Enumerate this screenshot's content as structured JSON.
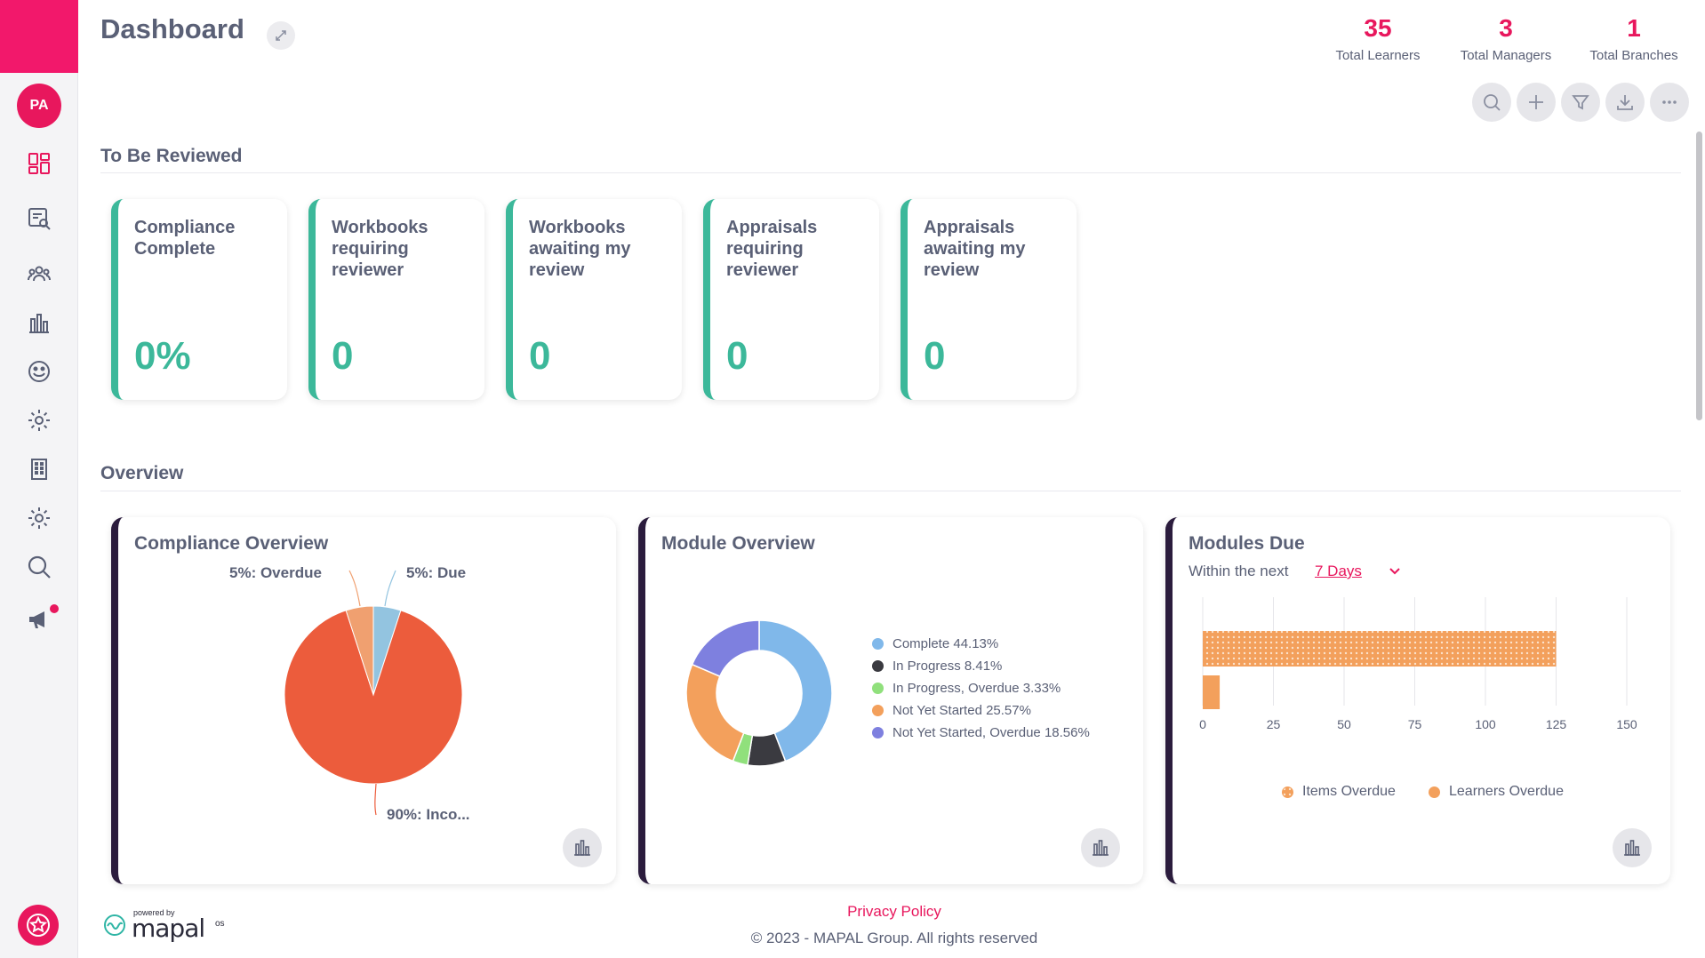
{
  "header": {
    "title": "Dashboard",
    "stats": [
      {
        "value": "35",
        "label": "Total Learners"
      },
      {
        "value": "3",
        "label": "Total Managers"
      },
      {
        "value": "1",
        "label": "Total Branches"
      }
    ]
  },
  "sidebar": {
    "avatar_initials": "PA",
    "items": [
      "dashboard-icon",
      "report-search-icon",
      "people-icon",
      "bar-chart-icon",
      "smiley-icon",
      "gear-icon",
      "building-icon",
      "settings-icon",
      "search-icon",
      "megaphone-icon"
    ]
  },
  "toolbar": [
    "search-icon",
    "plus-icon",
    "filter-icon",
    "download-icon",
    "more-icon"
  ],
  "to_be_reviewed": {
    "title": "To Be Reviewed",
    "cards": [
      {
        "label": "Compliance Complete",
        "value": "0%"
      },
      {
        "label": "Workbooks requiring reviewer",
        "value": "0"
      },
      {
        "label": "Workbooks awaiting my review",
        "value": "0"
      },
      {
        "label": "Appraisals requiring reviewer",
        "value": "0"
      },
      {
        "label": "Appraisals awaiting my review",
        "value": "0"
      }
    ]
  },
  "overview": {
    "title": "Overview",
    "compliance": {
      "title": "Compliance Overview",
      "labels": {
        "overdue": "5%: Overdue",
        "due": "5%: Due",
        "incomplete": "90%: Inco..."
      }
    },
    "module": {
      "title": "Module Overview",
      "legend": [
        "Complete 44.13%",
        "In Progress 8.41%",
        "In Progress, Overdue 3.33%",
        "Not Yet Started 25.57%",
        "Not Yet Started, Overdue 18.56%"
      ]
    },
    "modules_due": {
      "title": "Modules Due",
      "within_label": "Within the next",
      "period": "7 Days",
      "x_ticks": [
        "0",
        "25",
        "50",
        "75",
        "100",
        "125",
        "150"
      ],
      "legend": [
        "Items Overdue",
        "Learners Overdue"
      ]
    }
  },
  "chart_data": [
    {
      "type": "pie",
      "title": "Compliance Overview",
      "categories": [
        "Overdue",
        "Due",
        "Incomplete"
      ],
      "values": [
        5,
        5,
        90
      ],
      "colors": [
        "#f0a070",
        "#93c4e0",
        "#ec5c3c"
      ]
    },
    {
      "type": "pie",
      "title": "Module Overview",
      "categories": [
        "Complete",
        "In Progress",
        "In Progress, Overdue",
        "Not Yet Started",
        "Not Yet Started, Overdue"
      ],
      "values": [
        44.13,
        8.41,
        3.33,
        25.57,
        18.56
      ],
      "colors": [
        "#80b8ea",
        "#3a3a40",
        "#90e07c",
        "#f3a05c",
        "#7e80df"
      ]
    },
    {
      "type": "bar",
      "title": "Modules Due",
      "orientation": "horizontal",
      "series": [
        {
          "name": "Items Overdue",
          "values": [
            125
          ]
        },
        {
          "name": "Learners Overdue",
          "values": [
            6
          ]
        }
      ],
      "xlim": [
        0,
        150
      ],
      "x_ticks": [
        0,
        25,
        50,
        75,
        100,
        125,
        150
      ],
      "colors": [
        "#f3a05c",
        "#f3a05c"
      ]
    }
  ],
  "footer": {
    "powered_by": "powered by",
    "brand": "mapal",
    "brand_suffix": "os",
    "privacy": "Privacy Policy",
    "copyright": "© 2023 - MAPAL Group. All rights reserved"
  }
}
